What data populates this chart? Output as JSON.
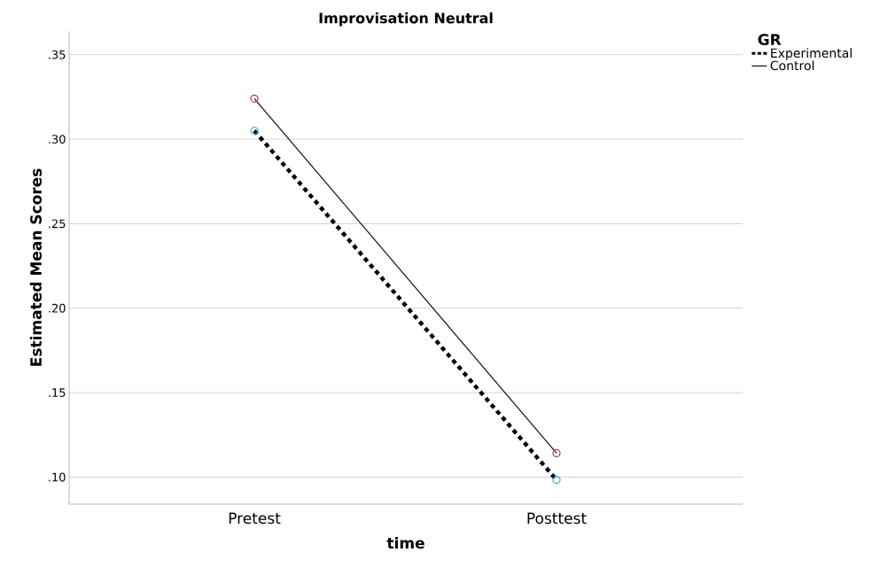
{
  "chart_data": {
    "type": "line",
    "title": "Improvisation Neutral",
    "xlabel": "time",
    "ylabel": "Estimated Mean Scores",
    "legend_title": "GR",
    "categories": [
      "Pretest",
      "Posttest"
    ],
    "series": [
      {
        "name": "Experimental",
        "color": "#000000",
        "colors": [
          "#3aa6e0",
          "#3aa6e0"
        ],
        "line_style": "dotted",
        "values": [
          0.305,
          0.0984
        ]
      },
      {
        "name": "Control",
        "color": "#000000",
        "colors": [
          "#b0305f",
          "#b0305f"
        ],
        "line_style": "solid",
        "values": [
          0.324,
          0.1142
        ]
      }
    ],
    "ylim": [
      0.084,
      0.364
    ],
    "yticks": [
      {
        "value": 0.1,
        "label": ".10"
      },
      {
        "value": 0.15,
        "label": ".15"
      },
      {
        "value": 0.2,
        "label": ".20"
      },
      {
        "value": 0.25,
        "label": ".25"
      },
      {
        "value": 0.3,
        "label": ".30"
      },
      {
        "value": 0.35,
        "label": ".35"
      }
    ],
    "grid": "y",
    "legend": "top right",
    "marker": "circle"
  }
}
